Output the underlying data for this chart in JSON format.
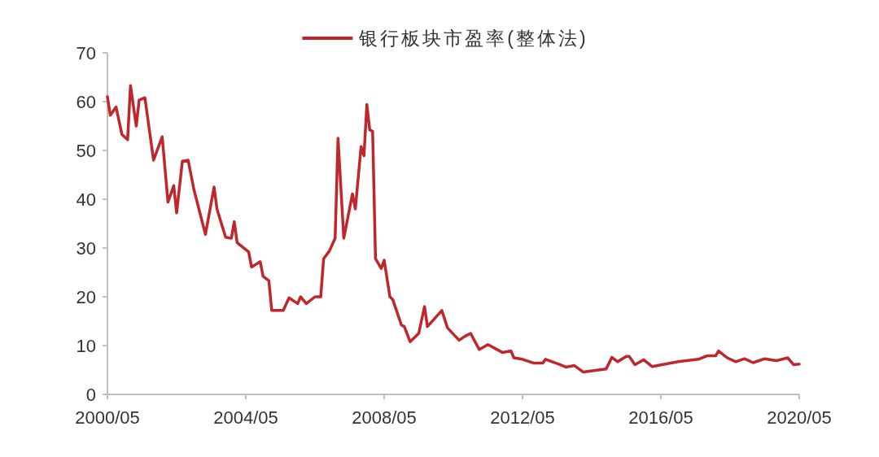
{
  "chart_data": {
    "type": "line",
    "xlim": [
      "2000-05",
      "2020-05"
    ],
    "ylim": [
      0,
      70
    ],
    "yticks": [
      0,
      10,
      20,
      30,
      40,
      50,
      60,
      70
    ],
    "xticks": [
      {
        "value": "2000-05",
        "label": "2000/05"
      },
      {
        "value": "2004-05",
        "label": "2004/05"
      },
      {
        "value": "2008-05",
        "label": "2008/05"
      },
      {
        "value": "2012-05",
        "label": "2012/05"
      },
      {
        "value": "2016-05",
        "label": "2016/05"
      },
      {
        "value": "2020-05",
        "label": "2020/05"
      }
    ],
    "grid": false,
    "legend": "top",
    "marker": "none",
    "line_style": "solid",
    "series": [
      {
        "name": "银行板块市盈率(整体法)",
        "color": "#c0272d",
        "x": [
          "2000-05",
          "2000-06",
          "2000-08",
          "2000-10",
          "2000-12",
          "2001-01",
          "2001-03",
          "2001-04",
          "2001-06",
          "2001-09",
          "2001-12",
          "2002-02",
          "2002-04",
          "2002-05",
          "2002-07",
          "2002-09",
          "2002-11",
          "2003-03",
          "2003-06",
          "2003-07",
          "2003-10",
          "2003-12",
          "2004-01",
          "2004-02",
          "2004-06",
          "2004-07",
          "2004-10",
          "2004-11",
          "2005-01",
          "2005-02",
          "2005-06",
          "2005-08",
          "2005-11",
          "2005-12",
          "2006-02",
          "2006-05",
          "2006-07",
          "2006-08",
          "2006-10",
          "2006-12",
          "2007-01",
          "2007-03",
          "2007-06",
          "2007-07",
          "2007-09",
          "2007-10",
          "2007-11",
          "2007-12",
          "2008-01",
          "2008-02",
          "2008-04",
          "2008-05",
          "2008-07",
          "2008-08",
          "2008-11",
          "2008-12",
          "2009-02",
          "2009-05",
          "2009-07",
          "2009-08",
          "2010-01",
          "2010-03",
          "2010-07",
          "2010-09",
          "2010-11",
          "2011-02",
          "2011-05",
          "2011-10",
          "2012-01",
          "2012-02",
          "2012-05",
          "2012-09",
          "2012-12",
          "2013-01",
          "2013-06",
          "2013-08",
          "2013-11",
          "2014-02",
          "2014-10",
          "2014-12",
          "2015-02",
          "2015-05",
          "2015-06",
          "2015-08",
          "2015-11",
          "2016-02",
          "2016-11",
          "2017-06",
          "2017-09",
          "2017-12",
          "2018-01",
          "2018-04",
          "2018-07",
          "2018-10",
          "2019-01",
          "2019-05",
          "2019-09",
          "2020-01",
          "2020-03",
          "2020-05"
        ],
        "values": [
          61,
          57.2,
          58.9,
          53.3,
          52.2,
          63.3,
          55,
          60.3,
          60.8,
          48,
          52.8,
          39.4,
          42.8,
          37.2,
          47.8,
          48,
          42,
          32.8,
          42.5,
          38,
          32.2,
          32,
          35.4,
          31.1,
          29.2,
          26.1,
          27.2,
          24.2,
          23.3,
          17.2,
          17.2,
          19.8,
          18.6,
          20,
          18.6,
          20,
          20,
          27.8,
          29.4,
          32,
          52.5,
          32,
          41.1,
          38,
          50.8,
          48.9,
          59.4,
          54.2,
          53.9,
          27.8,
          25.8,
          27.5,
          20,
          19.4,
          14.2,
          13.9,
          10.8,
          12.5,
          18,
          13.9,
          17.2,
          13.6,
          11.1,
          11.9,
          12.5,
          9.2,
          10.2,
          8.6,
          8.9,
          7.5,
          7.2,
          6.4,
          6.4,
          7.2,
          6.1,
          5.6,
          5.9,
          4.6,
          5.2,
          7.6,
          6.7,
          7.8,
          7.8,
          6.1,
          7.1,
          5.7,
          6.7,
          7.2,
          7.9,
          7.9,
          8.9,
          7.5,
          6.7,
          7.3,
          6.5,
          7.3,
          6.9,
          7.5,
          6.1,
          6.2
        ]
      }
    ]
  }
}
